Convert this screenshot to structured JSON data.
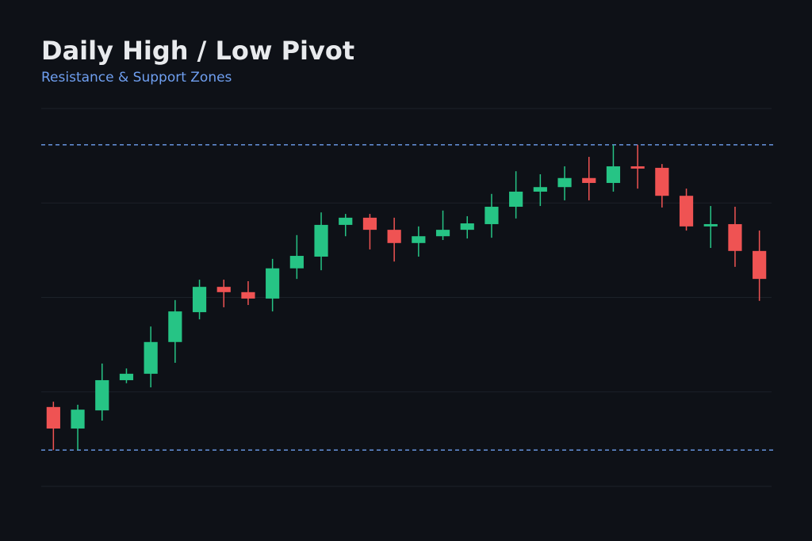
{
  "chart_data": {
    "type": "candlestick",
    "title": "Daily High / Low Pivot",
    "subtitle": "Resistance & Support Zones",
    "open": [
      21.0,
      15.3,
      20.1,
      28.1,
      29.8,
      38.2,
      46.1,
      52.8,
      51.4,
      49.7,
      57.7,
      60.8,
      69.2,
      71.1,
      67.9,
      64.4,
      66.2,
      67.9,
      69.4,
      74.0,
      78.0,
      79.2,
      81.6,
      80.3,
      84.7,
      84.3,
      76.9,
      68.8,
      69.4,
      62.3
    ],
    "high": [
      22.4,
      21.6,
      32.5,
      31.2,
      42.3,
      49.3,
      54.7,
      54.7,
      54.3,
      60.2,
      66.5,
      72.5,
      72.1,
      72.1,
      71.1,
      68.8,
      73.0,
      71.5,
      77.4,
      83.4,
      82.6,
      84.7,
      87.2,
      90.4,
      90.4,
      85.3,
      78.8,
      74.2,
      74.0,
      67.7
    ],
    "low": [
      9.6,
      9.6,
      17.4,
      27.3,
      26.2,
      32.7,
      44.2,
      47.4,
      48.0,
      46.3,
      54.9,
      57.2,
      66.2,
      62.7,
      59.5,
      60.8,
      65.2,
      65.6,
      65.8,
      70.9,
      74.2,
      75.7,
      75.7,
      78.0,
      78.8,
      73.8,
      67.7,
      63.1,
      58.1,
      49.1
    ],
    "close": [
      15.3,
      20.3,
      28.1,
      29.8,
      38.2,
      46.3,
      52.8,
      51.4,
      49.7,
      57.7,
      61.0,
      69.2,
      71.1,
      67.9,
      64.4,
      66.2,
      67.9,
      69.6,
      74.0,
      78.0,
      79.2,
      81.6,
      80.3,
      84.7,
      84.1,
      76.9,
      68.8,
      69.4,
      62.3,
      54.9
    ],
    "up_color": "#26c485",
    "down_color": "#ef5353",
    "levels": [
      90.4,
      9.6
    ],
    "level_color": "#6f9ff0",
    "ylim": [
      0,
      100
    ],
    "yticks": [
      0,
      25,
      50,
      75,
      100
    ],
    "grid": true
  }
}
